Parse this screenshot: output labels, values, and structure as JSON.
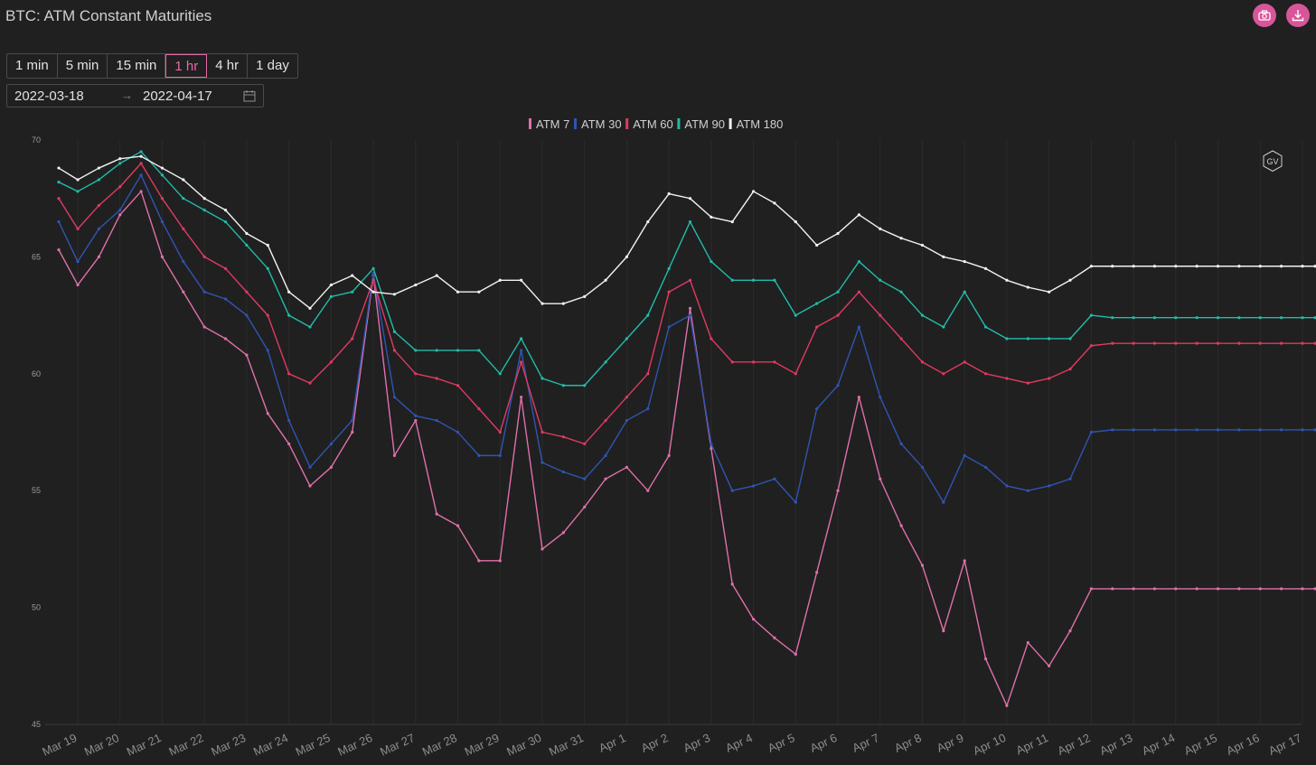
{
  "title": "BTC: ATM Constant Maturities",
  "toolbar": {
    "camera_icon": "camera-icon",
    "download_icon": "download-icon",
    "accent": "#d9559a"
  },
  "intervals": {
    "options": [
      "1 min",
      "5 min",
      "15 min",
      "1 hr",
      "4 hr",
      "1 day"
    ],
    "selected": "1 hr"
  },
  "date_range": {
    "start": "2022-03-18",
    "end": "2022-04-17",
    "calendar_icon": "calendar-icon"
  },
  "watermark": "GV",
  "chart_data": {
    "type": "line",
    "title": "",
    "xlabel": "",
    "ylabel": "",
    "ylim": [
      45,
      70
    ],
    "yticks": [
      45,
      50,
      55,
      60,
      65,
      70
    ],
    "x_tick_labels": [
      "Mar 19",
      "Mar 20",
      "Mar 21",
      "Mar 22",
      "Mar 23",
      "Mar 24",
      "Mar 25",
      "Mar 26",
      "Mar 27",
      "Mar 28",
      "Mar 29",
      "Mar 30",
      "Mar 31",
      "Apr 1",
      "Apr 2",
      "Apr 3",
      "Apr 4",
      "Apr 5",
      "Apr 6",
      "Apr 7",
      "Apr 8",
      "Apr 9",
      "Apr 10",
      "Apr 11",
      "Apr 12",
      "Apr 13",
      "Apr 14",
      "Apr 15",
      "Apr 16",
      "Apr 17"
    ],
    "x_range_days": [
      0.55,
      30.3
    ],
    "legend_position": "top-center",
    "grid": "vertical",
    "x": [
      0.55,
      1.0,
      1.5,
      2.0,
      2.5,
      3.0,
      3.5,
      4.0,
      4.5,
      5.0,
      5.5,
      6.0,
      6.5,
      7.0,
      7.5,
      8.0,
      8.5,
      9.0,
      9.5,
      10.0,
      10.5,
      11.0,
      11.5,
      12.0,
      12.5,
      13.0,
      13.5,
      14.0,
      14.5,
      15.0,
      15.5,
      16.0,
      16.5,
      17.0,
      17.5,
      18.0,
      18.5,
      19.0,
      19.5,
      20.0,
      20.5,
      21.0,
      21.5,
      22.0,
      22.5,
      23.0,
      23.5,
      24.0,
      24.5,
      25.0,
      25.5,
      26.0,
      26.5,
      27.0,
      27.5,
      28.0,
      28.5,
      29.0,
      29.5,
      30.0,
      30.3
    ],
    "series": [
      {
        "name": "ATM 7",
        "color": "#e070aa",
        "values": [
          65.3,
          63.8,
          65.0,
          66.8,
          67.8,
          65.0,
          63.5,
          62.0,
          61.5,
          60.8,
          58.3,
          57.0,
          55.2,
          56.0,
          57.5,
          64.2,
          56.5,
          58.0,
          54.0,
          53.5,
          52.0,
          52.0,
          59.0,
          52.5,
          53.2,
          54.3,
          55.5,
          56.0,
          55.0,
          56.5,
          62.8,
          56.8,
          51.0,
          49.5,
          48.7,
          48.0,
          51.5,
          55.0,
          59.0,
          55.5,
          53.5,
          51.8,
          49.0,
          52.0,
          47.8,
          45.8,
          48.5,
          47.5,
          49.0,
          50.8,
          50.8,
          50.8,
          50.8,
          50.8,
          50.8,
          50.8,
          50.8,
          50.8,
          50.8,
          50.8,
          50.8
        ]
      },
      {
        "name": "ATM 30",
        "color": "#2f55b3",
        "values": [
          66.5,
          64.8,
          66.2,
          67.0,
          68.5,
          66.5,
          64.8,
          63.5,
          63.2,
          62.5,
          61.0,
          58.0,
          56.0,
          57.0,
          58.0,
          64.3,
          59.0,
          58.2,
          58.0,
          57.5,
          56.5,
          56.5,
          61.0,
          56.2,
          55.8,
          55.5,
          56.5,
          58.0,
          58.5,
          62.0,
          62.5,
          57.0,
          55.0,
          55.2,
          55.5,
          54.5,
          58.5,
          59.5,
          62.0,
          59.0,
          57.0,
          56.0,
          54.5,
          56.5,
          56.0,
          55.2,
          55.0,
          55.2,
          55.5,
          57.5,
          57.6,
          57.6,
          57.6,
          57.6,
          57.6,
          57.6,
          57.6,
          57.6,
          57.6,
          57.6,
          57.6
        ]
      },
      {
        "name": "ATM 60",
        "color": "#e03a62",
        "values": [
          67.5,
          66.2,
          67.2,
          68.0,
          69.0,
          67.5,
          66.2,
          65.0,
          64.5,
          63.5,
          62.5,
          60.0,
          59.6,
          60.5,
          61.5,
          64.0,
          61.0,
          60.0,
          59.8,
          59.5,
          58.5,
          57.5,
          60.5,
          57.5,
          57.3,
          57.0,
          58.0,
          59.0,
          60.0,
          63.5,
          64.0,
          61.5,
          60.5,
          60.5,
          60.5,
          60.0,
          62.0,
          62.5,
          63.5,
          62.5,
          61.5,
          60.5,
          60.0,
          60.5,
          60.0,
          59.8,
          59.6,
          59.8,
          60.2,
          61.2,
          61.3,
          61.3,
          61.3,
          61.3,
          61.3,
          61.3,
          61.3,
          61.3,
          61.3,
          61.3,
          61.3
        ]
      },
      {
        "name": "ATM 90",
        "color": "#22bba8",
        "values": [
          68.2,
          67.8,
          68.3,
          69.0,
          69.5,
          68.5,
          67.5,
          67.0,
          66.5,
          65.5,
          64.5,
          62.5,
          62.0,
          63.3,
          63.5,
          64.5,
          61.8,
          61.0,
          61.0,
          61.0,
          61.0,
          60.0,
          61.5,
          59.8,
          59.5,
          59.5,
          60.5,
          61.5,
          62.5,
          64.5,
          66.5,
          64.8,
          64.0,
          64.0,
          64.0,
          62.5,
          63.0,
          63.5,
          64.8,
          64.0,
          63.5,
          62.5,
          62.0,
          63.5,
          62.0,
          61.5,
          61.5,
          61.5,
          61.5,
          62.5,
          62.4,
          62.4,
          62.4,
          62.4,
          62.4,
          62.4,
          62.4,
          62.4,
          62.4,
          62.4,
          62.4
        ]
      },
      {
        "name": "ATM 180",
        "color": "#f2f2f2",
        "values": [
          68.8,
          68.3,
          68.8,
          69.2,
          69.3,
          68.8,
          68.3,
          67.5,
          67.0,
          66.0,
          65.5,
          63.5,
          62.8,
          63.8,
          64.2,
          63.5,
          63.4,
          63.8,
          64.2,
          63.5,
          63.5,
          64.0,
          64.0,
          63.0,
          63.0,
          63.3,
          64.0,
          65.0,
          66.5,
          67.7,
          67.5,
          66.7,
          66.5,
          67.8,
          67.3,
          66.5,
          65.5,
          66.0,
          66.8,
          66.2,
          65.8,
          65.5,
          65.0,
          64.8,
          64.5,
          64.0,
          63.7,
          63.5,
          64.0,
          64.6,
          64.6,
          64.6,
          64.6,
          64.6,
          64.6,
          64.6,
          64.6,
          64.6,
          64.6,
          64.6,
          64.6
        ]
      }
    ]
  }
}
